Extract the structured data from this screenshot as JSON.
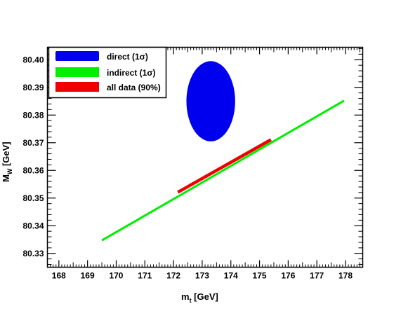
{
  "chart_data": {
    "type": "scatter",
    "title": "",
    "xlabel": {
      "main": "m",
      "sub": "t",
      "unit": " [GeV]"
    },
    "ylabel": {
      "main": "M",
      "sub": "W",
      "unit": " [GeV]"
    },
    "xlim": [
      167.6,
      178.6
    ],
    "ylim": [
      80.325,
      80.4045
    ],
    "xticks": [
      "168",
      "169",
      "170",
      "171",
      "172",
      "173",
      "174",
      "175",
      "176",
      "177",
      "178"
    ],
    "yticks": [
      "80.33",
      "80.34",
      "80.35",
      "80.36",
      "80.37",
      "80.38",
      "80.39",
      "80.40"
    ],
    "grid": false,
    "legend_position": "top-left",
    "series": [
      {
        "name": "direct (1σ)",
        "kind": "ellipse",
        "color": "#0000ee",
        "center": [
          173.3,
          80.385
        ],
        "half_width_x": 0.85,
        "half_width_y": 0.0145
      },
      {
        "name": "indirect (1σ)",
        "kind": "band",
        "color": "#00ee00",
        "x": [
          169.5,
          177.95
        ],
        "y": [
          80.3347,
          80.3852
        ]
      },
      {
        "name": "all data (90%)",
        "kind": "band",
        "color": "#ee0000",
        "x": [
          172.15,
          175.4
        ],
        "y": [
          80.3521,
          80.3711
        ]
      }
    ]
  }
}
